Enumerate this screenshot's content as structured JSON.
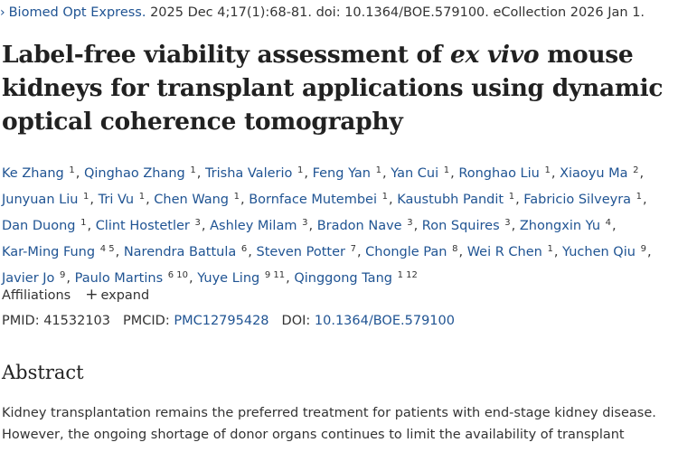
{
  "citation": {
    "journal": "Biomed Opt Express.",
    "details": "2025 Dec 4;17(1):68-81. doi: 10.1364/BOE.579100. eCollection 2026 Jan 1."
  },
  "title": {
    "part1": "Label-free viability assessment of ",
    "italic": "ex vivo",
    "part2": " mouse kidneys for transplant applications using dynamic optical coherence tomography"
  },
  "authors": [
    {
      "name": "Ke Zhang",
      "aff": "1"
    },
    {
      "name": "Qinghao Zhang",
      "aff": "1"
    },
    {
      "name": "Trisha Valerio",
      "aff": "1"
    },
    {
      "name": "Feng Yan",
      "aff": "1"
    },
    {
      "name": "Yan Cui",
      "aff": "1"
    },
    {
      "name": "Ronghao Liu",
      "aff": "1"
    },
    {
      "name": "Xiaoyu Ma",
      "aff": "2"
    },
    {
      "name": "Junyuan Liu",
      "aff": "1"
    },
    {
      "name": "Tri Vu",
      "aff": "1"
    },
    {
      "name": "Chen Wang",
      "aff": "1"
    },
    {
      "name": "Bornface Mutembei",
      "aff": "1"
    },
    {
      "name": "Kaustubh Pandit",
      "aff": "1"
    },
    {
      "name": "Fabricio Silveyra",
      "aff": "1"
    },
    {
      "name": "Dan Duong",
      "aff": "1"
    },
    {
      "name": "Clint Hostetler",
      "aff": "3"
    },
    {
      "name": "Ashley Milam",
      "aff": "3"
    },
    {
      "name": "Bradon Nave",
      "aff": "3"
    },
    {
      "name": "Ron Squires",
      "aff": "3"
    },
    {
      "name": "Zhongxin Yu",
      "aff": "4"
    },
    {
      "name": "Kar-Ming Fung",
      "aff": "4 5"
    },
    {
      "name": "Narendra Battula",
      "aff": "6"
    },
    {
      "name": "Steven Potter",
      "aff": "7"
    },
    {
      "name": "Chongle Pan",
      "aff": "8"
    },
    {
      "name": "Wei R Chen",
      "aff": "1"
    },
    {
      "name": "Yuchen Qiu",
      "aff": "9"
    },
    {
      "name": "Javier Jo",
      "aff": "9"
    },
    {
      "name": "Paulo Martins",
      "aff": "6 10"
    },
    {
      "name": "Yuye Ling",
      "aff": "9 11"
    },
    {
      "name": "Qinggong Tang",
      "aff": "1 12"
    }
  ],
  "affiliations": {
    "label": "Affiliations",
    "expand_label": "expand"
  },
  "ids": {
    "pmid_label": "PMID:",
    "pmid": "41532103",
    "pmcid_label": "PMCID:",
    "pmcid": "PMC12795428",
    "doi_label": "DOI:",
    "doi": "10.1364/BOE.579100"
  },
  "abstract": {
    "heading": "Abstract",
    "text": "Kidney transplantation remains the preferred treatment for patients with end-stage kidney disease. However, the ongoing shortage of donor organs continues to limit the availability of transplant"
  },
  "colors": {
    "link": "#205493",
    "text": "#212121"
  }
}
